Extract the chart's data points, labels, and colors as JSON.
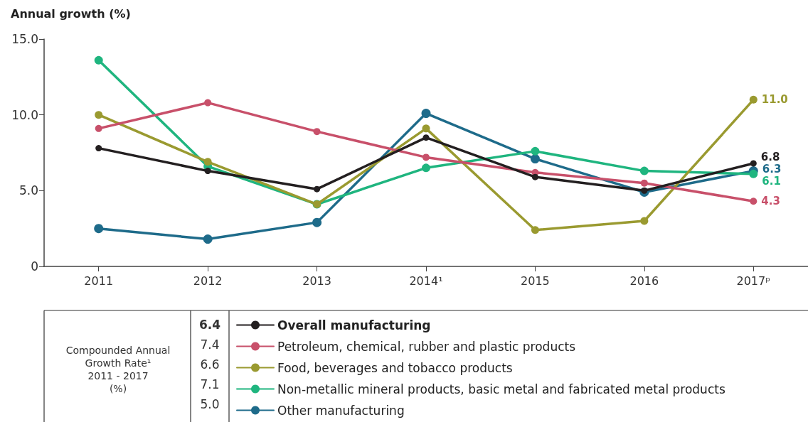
{
  "chart_data": {
    "type": "line",
    "ylabel": "Annual growth (%)",
    "categories": [
      "2011",
      "2012",
      "2013",
      "2014¹",
      "2015",
      "2016",
      "2017ᵖ"
    ],
    "series": [
      {
        "name": "Overall manufacturing",
        "color": "#231f20",
        "values": [
          7.8,
          6.3,
          5.1,
          8.5,
          5.9,
          5.0,
          6.8
        ],
        "value_labels": [
          null,
          null,
          null,
          null,
          null,
          null,
          "6.8"
        ]
      },
      {
        "name": "Petroleum, chemical, rubber and plastic products",
        "color": "#c8506a",
        "values": [
          9.1,
          10.8,
          8.9,
          7.2,
          6.2,
          5.5,
          4.3
        ],
        "value_labels": [
          null,
          null,
          null,
          null,
          null,
          null,
          "4.3"
        ]
      },
      {
        "name": "Food, beverages and tobacco products",
        "color": "#9a9a30",
        "values": [
          10.0,
          6.9,
          4.1,
          9.1,
          2.4,
          3.0,
          11.0
        ],
        "value_labels": [
          null,
          null,
          null,
          null,
          null,
          null,
          "11.0"
        ]
      },
      {
        "name": "Non-metallic mineral products, basic metal and fabricated metal products",
        "color": "#1fb57f",
        "values": [
          13.6,
          6.6,
          4.1,
          6.5,
          7.6,
          6.3,
          6.1
        ],
        "value_labels": [
          null,
          null,
          null,
          null,
          null,
          null,
          "6.1"
        ]
      },
      {
        "name": "Other manufacturing",
        "color": "#1e6b8a",
        "values": [
          2.5,
          1.8,
          2.9,
          10.1,
          7.1,
          4.9,
          6.3
        ],
        "value_labels": [
          null,
          null,
          null,
          null,
          null,
          null,
          "6.3"
        ]
      }
    ],
    "ylim": [
      0,
      15
    ],
    "yticks": [
      0,
      {
        "value": 5,
        "label": "5.0"
      },
      {
        "value": 10,
        "label": "10.0"
      },
      {
        "value": 15,
        "label": "15.0"
      }
    ],
    "grid": false,
    "legend": "bottom",
    "marker": "circle",
    "line_style": "solid",
    "annotations": [
      "Compounded Annual\nGrowth Rate¹\n2011 - 2017\n(%)",
      "6.4",
      "7.4",
      "6.6",
      "7.1",
      "5.0"
    ]
  }
}
